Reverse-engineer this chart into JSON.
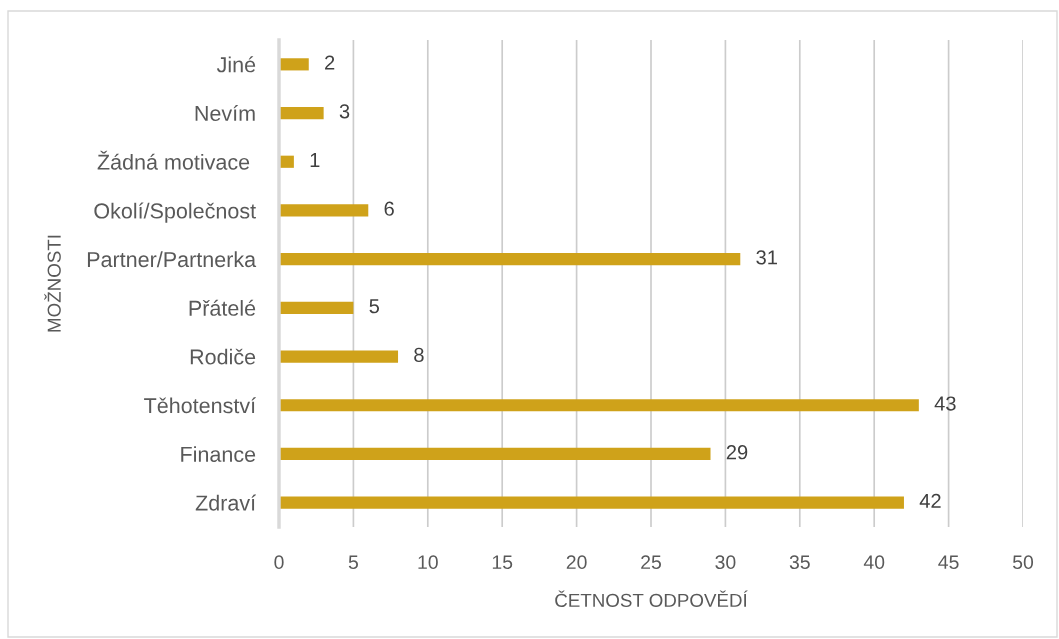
{
  "chart_data": {
    "type": "bar",
    "orientation": "horizontal",
    "categories": [
      "Jiné",
      "Nevím",
      "Žádná motivace ",
      "Okolí/Společnost",
      "Partner/Partnerka",
      "Přátelé",
      "Rodiče",
      "Těhotenství",
      "Finance",
      "Zdraví"
    ],
    "values": [
      2,
      3,
      1,
      6,
      31,
      5,
      8,
      43,
      29,
      42
    ],
    "color": "#cfa21a",
    "xlim": [
      0,
      50
    ],
    "xticks": [
      0,
      5,
      10,
      15,
      20,
      25,
      30,
      35,
      40,
      45,
      50
    ],
    "xlabel": "ČETNOST ODPOVĚDÍ",
    "ylabel": "MOŽNOSTI",
    "grid": "x",
    "data_labels": true
  }
}
